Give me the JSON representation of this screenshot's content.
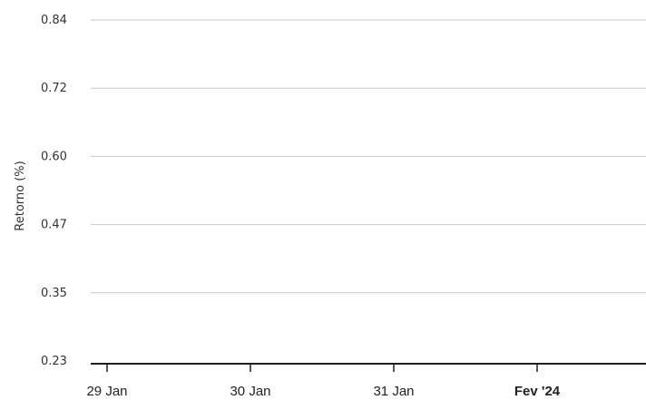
{
  "chart_data": {
    "type": "line",
    "title": "",
    "xlabel": "",
    "ylabel": "Retorno (%)",
    "x_ticks": [
      {
        "date": "2024-01-29",
        "label": "29 Jan",
        "bold": false
      },
      {
        "date": "2024-01-30",
        "label": "30 Jan",
        "bold": false
      },
      {
        "date": "2024-01-31",
        "label": "31 Jan",
        "bold": false
      },
      {
        "date": "2024-02-01",
        "label": "Fev '24",
        "bold": true
      }
    ],
    "y_ticks": [
      0.23,
      0.35,
      0.47,
      0.6,
      0.72,
      0.84
    ],
    "y_tick_labels": [
      "0.23",
      "0.35",
      "0.47",
      "0.60",
      "0.72",
      "0.84"
    ],
    "ylim": [
      0.23,
      0.84
    ],
    "grid": true,
    "series": []
  }
}
